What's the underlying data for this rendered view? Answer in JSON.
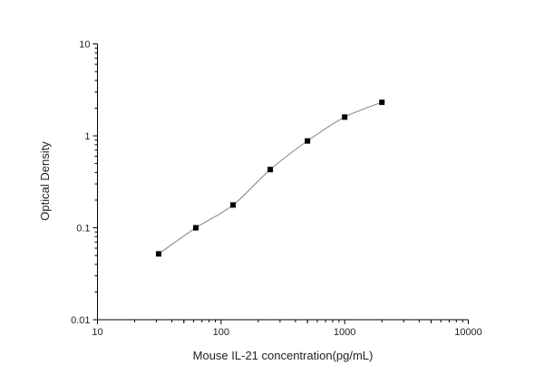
{
  "chart_data": {
    "type": "scatter",
    "title": "",
    "xlabel": "Mouse IL-21 concentration(pg/mL)",
    "ylabel": "Optical Density",
    "xscale": "log",
    "yscale": "log",
    "xlim": [
      10,
      10000
    ],
    "ylim": [
      0.01,
      10
    ],
    "x_ticks": [
      "10",
      "100",
      "1000",
      "10000"
    ],
    "y_ticks": [
      "0.01",
      "0.1",
      "1",
      "10"
    ],
    "grid": false,
    "legend": "none",
    "series": [
      {
        "x": [
          31.25,
          62.5,
          125,
          250,
          500,
          1000,
          2000
        ],
        "y": [
          0.052,
          0.1,
          0.177,
          0.43,
          0.88,
          1.6,
          2.32
        ],
        "marker": "square",
        "fit_curve": true,
        "color": "#000000",
        "curve_color": "#808080"
      }
    ]
  }
}
